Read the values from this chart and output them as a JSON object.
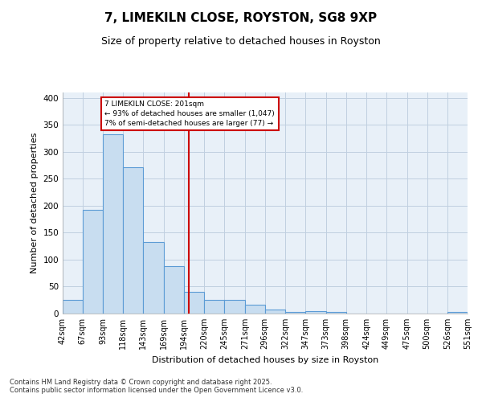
{
  "title": "7, LIMEKILN CLOSE, ROYSTON, SG8 9XP",
  "subtitle": "Size of property relative to detached houses in Royston",
  "xlabel": "Distribution of detached houses by size in Royston",
  "ylabel": "Number of detached properties",
  "bins": [
    42,
    67,
    93,
    118,
    143,
    169,
    194,
    220,
    245,
    271,
    296,
    322,
    347,
    373,
    398,
    424,
    449,
    475,
    500,
    526,
    551
  ],
  "counts": [
    25,
    193,
    333,
    272,
    132,
    88,
    40,
    26,
    26,
    16,
    8,
    3,
    4,
    3,
    0,
    0,
    0,
    0,
    0,
    3
  ],
  "bar_color": "#c8ddf0",
  "bar_edge_color": "#5b9bd5",
  "grid_color": "#c0cfe0",
  "bg_color": "#e8f0f8",
  "vline_x": 201,
  "vline_color": "#cc0000",
  "annotation_text": "7 LIMEKILN CLOSE: 201sqm\n← 93% of detached houses are smaller (1,047)\n7% of semi-detached houses are larger (77) →",
  "annotation_box_facecolor": "#ffffff",
  "annotation_box_edgecolor": "#cc0000",
  "footer": "Contains HM Land Registry data © Crown copyright and database right 2025.\nContains public sector information licensed under the Open Government Licence v3.0.",
  "ylim": [
    0,
    410
  ],
  "yticks": [
    0,
    50,
    100,
    150,
    200,
    250,
    300,
    350,
    400
  ],
  "tick_labels": [
    "42sqm",
    "67sqm",
    "93sqm",
    "118sqm",
    "143sqm",
    "169sqm",
    "194sqm",
    "220sqm",
    "245sqm",
    "271sqm",
    "296sqm",
    "322sqm",
    "347sqm",
    "373sqm",
    "398sqm",
    "424sqm",
    "449sqm",
    "475sqm",
    "500sqm",
    "526sqm",
    "551sqm"
  ],
  "title_fontsize": 11,
  "subtitle_fontsize": 9,
  "axis_label_fontsize": 8,
  "tick_fontsize": 7,
  "footer_fontsize": 6
}
